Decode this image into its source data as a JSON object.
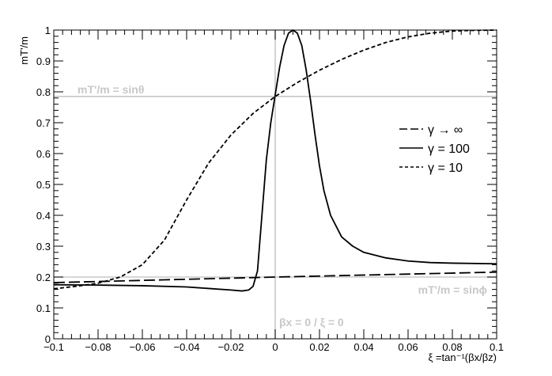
{
  "chart_data": {
    "type": "line",
    "title": "",
    "xlabel": "ξ =tan⁻¹(βx/βz)",
    "ylabel": "mT'/m",
    "xlim": [
      -0.1,
      0.1
    ],
    "ylim": [
      0,
      1
    ],
    "x_ticks": [
      -0.1,
      -0.08,
      -0.06,
      -0.04,
      -0.02,
      0,
      0.02,
      0.04,
      0.06,
      0.08,
      0.1
    ],
    "x_tick_labels": [
      "−0.1",
      "−0.08",
      "−0.06",
      "−0.04",
      "−0.02",
      "0",
      "0.02",
      "0.04",
      "0.06",
      "0.08",
      "0.1"
    ],
    "y_ticks": [
      0,
      0.1,
      0.2,
      0.3,
      0.4,
      0.5,
      0.6,
      0.7,
      0.8,
      0.9,
      1
    ],
    "y_tick_labels": [
      "0",
      "0.1",
      "0.2",
      "0.3",
      "0.4",
      "0.5",
      "0.6",
      "0.7",
      "0.8",
      "0.9",
      "1"
    ],
    "grid": false,
    "legend_position": "right",
    "reference_lines": [
      {
        "orientation": "horizontal",
        "value": 0.785,
        "label": "mT'/m = sinθ",
        "label_position": "upper-left"
      },
      {
        "orientation": "horizontal",
        "value": 0.2,
        "label": "mT'/m = sinϕ",
        "label_position": "lower-right"
      },
      {
        "orientation": "vertical",
        "value": 0,
        "label": "βx = 0 / ξ = 0",
        "label_position": "bottom"
      }
    ],
    "series": [
      {
        "name": "γ → ∞",
        "style": "longdash",
        "color": "#000000",
        "x": [
          -0.1,
          -0.05,
          0,
          0.05,
          0.1
        ],
        "y": [
          0.182,
          0.191,
          0.2,
          0.208,
          0.216
        ]
      },
      {
        "name": "γ = 100",
        "style": "solid",
        "color": "#000000",
        "x": [
          -0.1,
          -0.08,
          -0.06,
          -0.04,
          -0.03,
          -0.02,
          -0.015,
          -0.012,
          -0.01,
          -0.008,
          -0.006,
          -0.004,
          -0.002,
          0,
          0.002,
          0.004,
          0.006,
          0.008,
          0.01,
          0.012,
          0.014,
          0.016,
          0.018,
          0.02,
          0.022,
          0.025,
          0.03,
          0.035,
          0.04,
          0.05,
          0.06,
          0.07,
          0.08,
          0.1
        ],
        "y": [
          0.175,
          0.174,
          0.172,
          0.168,
          0.163,
          0.158,
          0.155,
          0.158,
          0.17,
          0.22,
          0.4,
          0.58,
          0.7,
          0.79,
          0.88,
          0.95,
          0.99,
          1.0,
          0.99,
          0.95,
          0.87,
          0.77,
          0.66,
          0.56,
          0.48,
          0.4,
          0.33,
          0.3,
          0.28,
          0.262,
          0.252,
          0.247,
          0.245,
          0.243
        ]
      },
      {
        "name": "γ = 10",
        "style": "dashed",
        "color": "#000000",
        "x": [
          -0.1,
          -0.09,
          -0.08,
          -0.07,
          -0.06,
          -0.05,
          -0.04,
          -0.03,
          -0.02,
          -0.01,
          0,
          0.01,
          0.02,
          0.03,
          0.04,
          0.05,
          0.06,
          0.07,
          0.08,
          0.09,
          0.1
        ],
        "y": [
          0.162,
          0.17,
          0.18,
          0.2,
          0.24,
          0.32,
          0.45,
          0.57,
          0.66,
          0.73,
          0.785,
          0.83,
          0.87,
          0.905,
          0.935,
          0.96,
          0.978,
          0.99,
          0.997,
          0.999,
          1.0
        ]
      }
    ]
  },
  "colors": {
    "axis": "#000000",
    "reference": "#c8c8c8",
    "background": "#ffffff"
  }
}
